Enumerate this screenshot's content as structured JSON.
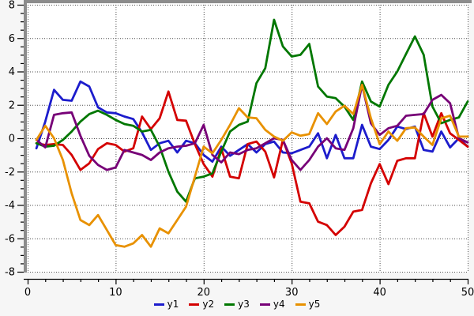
{
  "chart_data": {
    "type": "line",
    "title": "",
    "xlabel": "",
    "ylabel": "",
    "xlim": [
      0,
      50
    ],
    "ylim": [
      -8,
      8
    ],
    "x_major_ticks": [
      0,
      10,
      20,
      30,
      40,
      50
    ],
    "x_minor_step": 2,
    "y_major_ticks": [
      8,
      6,
      4,
      2,
      0,
      -2,
      -4,
      -6,
      -8
    ],
    "y_minor_step": 0.5,
    "grid": "dotted",
    "legend_position": "bottom-center",
    "x": [
      1,
      2,
      3,
      4,
      5,
      6,
      7,
      8,
      9,
      10,
      11,
      12,
      13,
      14,
      15,
      16,
      17,
      18,
      19,
      20,
      21,
      22,
      23,
      24,
      25,
      26,
      27,
      28,
      29,
      30,
      31,
      32,
      33,
      34,
      35,
      36,
      37,
      38,
      39,
      40,
      41,
      42,
      43,
      44,
      45,
      46,
      47,
      48,
      49,
      50
    ],
    "series": [
      {
        "name": "y1",
        "color": "#1c1ccc",
        "values": [
          -0.6,
          1.0,
          2.9,
          2.3,
          2.25,
          3.4,
          3.1,
          1.85,
          1.55,
          1.5,
          1.3,
          1.15,
          0.35,
          -0.7,
          -0.3,
          -0.15,
          -0.85,
          -0.15,
          -0.3,
          -1.0,
          -1.4,
          -0.5,
          -1.05,
          -0.7,
          -0.35,
          -0.85,
          -0.35,
          -0.2,
          -0.85,
          -0.9,
          -0.7,
          -0.5,
          0.3,
          -1.2,
          0.2,
          -1.2,
          -1.2,
          0.8,
          -0.5,
          -0.65,
          -0.1,
          0.7,
          0.55,
          0.7,
          -0.7,
          -0.8,
          0.4,
          -0.55,
          0.0,
          -0.5
        ]
      },
      {
        "name": "y2",
        "color": "#d40000",
        "values": [
          -0.3,
          -0.4,
          -0.35,
          -0.4,
          -1.0,
          -1.9,
          -1.5,
          -0.65,
          -0.3,
          -0.4,
          -0.8,
          -0.6,
          1.3,
          0.55,
          1.2,
          2.8,
          1.1,
          1.05,
          -0.35,
          -1.55,
          -2.3,
          -0.6,
          -2.3,
          -2.4,
          -0.35,
          -0.2,
          -0.8,
          -2.35,
          -0.1,
          -1.5,
          -3.8,
          -3.9,
          -5.0,
          -5.2,
          -5.8,
          -5.3,
          -4.4,
          -4.3,
          -2.7,
          -1.55,
          -2.75,
          -1.35,
          -1.2,
          -1.2,
          1.5,
          0.1,
          1.5,
          0.3,
          -0.1,
          -0.5
        ]
      },
      {
        "name": "y3",
        "color": "#007700",
        "values": [
          -0.3,
          -0.5,
          -0.45,
          -0.1,
          0.4,
          1.0,
          1.45,
          1.65,
          1.4,
          1.1,
          0.85,
          0.75,
          0.4,
          0.5,
          -0.5,
          -2.0,
          -3.2,
          -3.8,
          -2.4,
          -2.3,
          -2.1,
          -0.8,
          0.4,
          0.8,
          1.0,
          3.3,
          4.2,
          7.1,
          5.5,
          4.9,
          5.0,
          5.65,
          3.1,
          2.5,
          2.4,
          1.9,
          1.1,
          3.4,
          2.2,
          1.9,
          3.2,
          4.0,
          5.05,
          6.1,
          5.0,
          1.9,
          0.9,
          1.1,
          1.25,
          2.2
        ]
      },
      {
        "name": "y4",
        "color": "#770077",
        "values": [
          -0.1,
          -0.55,
          1.4,
          1.5,
          1.55,
          0.15,
          -1.05,
          -1.6,
          -1.9,
          -1.75,
          -0.7,
          -0.85,
          -1.0,
          -1.3,
          -0.85,
          -0.6,
          -0.5,
          -0.45,
          -0.3,
          0.8,
          -1.0,
          -1.45,
          -0.85,
          -0.95,
          -0.7,
          -0.6,
          -0.3,
          0.0,
          -0.1,
          -1.3,
          -1.9,
          -1.3,
          -0.5,
          0.0,
          -0.6,
          -0.7,
          0.6,
          3.2,
          0.9,
          0.2,
          0.6,
          0.75,
          1.35,
          1.4,
          1.45,
          2.3,
          2.6,
          2.1,
          0.0,
          -0.25
        ]
      },
      {
        "name": "y5",
        "color": "#e89100",
        "values": [
          -0.1,
          0.75,
          0.0,
          -1.3,
          -3.3,
          -4.9,
          -5.2,
          -4.6,
          -5.5,
          -6.4,
          -6.5,
          -6.3,
          -5.8,
          -6.5,
          -5.4,
          -5.7,
          -4.9,
          -4.1,
          -2.3,
          -0.5,
          -0.9,
          -0.1,
          0.8,
          1.8,
          1.25,
          1.2,
          0.5,
          0.1,
          -0.15,
          0.35,
          0.15,
          0.25,
          1.5,
          0.85,
          1.6,
          1.95,
          1.45,
          3.2,
          1.2,
          -0.35,
          0.4,
          -0.15,
          0.6,
          0.65,
          0.1,
          -0.4,
          1.2,
          1.35,
          0.1,
          0.1
        ]
      }
    ]
  },
  "style_colors": {
    "outer_background": "#f6f6f6",
    "plot_background": "#ffffff",
    "frame_gray": "#8c8c8c",
    "grid_dot": "#4d4d4d",
    "axis_black": "#000000"
  }
}
